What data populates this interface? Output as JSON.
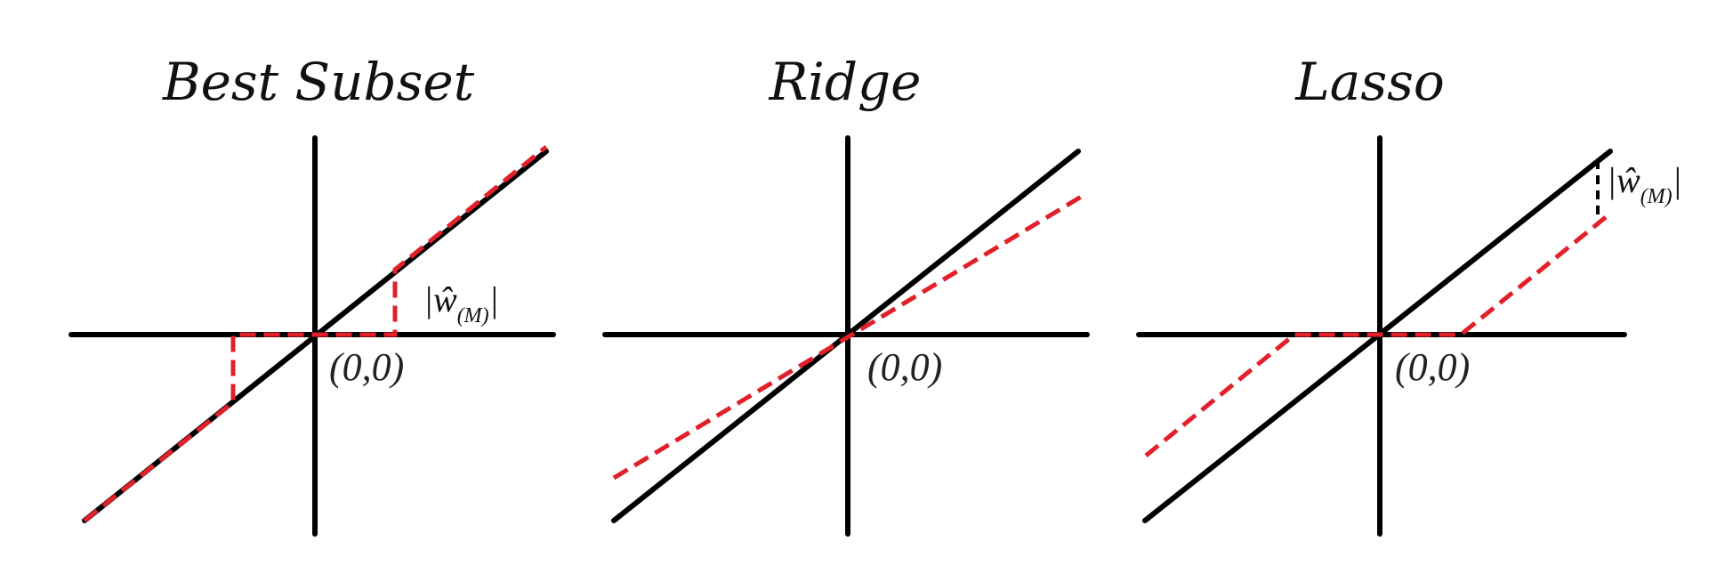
{
  "figure": {
    "description_note": "Three thresholding functions comparing estimators against the identity line",
    "colors": {
      "axis": "#000000",
      "identity_line": "#000000",
      "estimator_line": "#e1202a",
      "background": "#ffffff"
    }
  },
  "panels": [
    {
      "id": "best-subset",
      "title": "Best Subset",
      "origin_label": "(0,0)",
      "threshold_label": {
        "base": "|ŵ",
        "subscript": "(M)",
        "close": "|"
      },
      "estimator_type": "hard-threshold"
    },
    {
      "id": "ridge",
      "title": "Ridge",
      "origin_label": "(0,0)",
      "estimator_type": "proportional-shrinkage"
    },
    {
      "id": "lasso",
      "title": "Lasso",
      "origin_label": "(0,0)",
      "threshold_label": {
        "base": "|ŵ",
        "subscript": "(M)",
        "close": "|"
      },
      "estimator_type": "soft-threshold"
    }
  ]
}
